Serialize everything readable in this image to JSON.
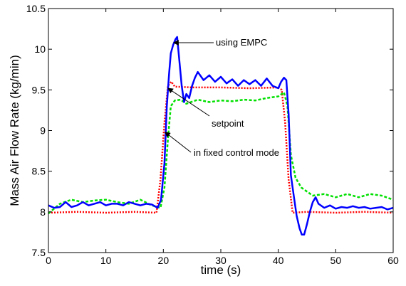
{
  "chart_data": {
    "type": "line",
    "title": "",
    "xlabel": "time (s)",
    "ylabel": "Mass Air Flow Rate (kg/min)",
    "xlim": [
      0,
      60
    ],
    "ylim": [
      7.5,
      10.5
    ],
    "xticks": [
      "0",
      "10",
      "20",
      "30",
      "40",
      "50",
      "60"
    ],
    "yticks": [
      "7.5",
      "8",
      "8.5",
      "9",
      "9.5",
      "10",
      "10.5"
    ],
    "grid": false,
    "legend": "none",
    "annotations": [
      {
        "text": "using EMPC",
        "point": [
          21.8,
          10.08
        ]
      },
      {
        "text": "setpoint",
        "point": [
          20.8,
          9.52
        ]
      },
      {
        "text": "in fixed control mode",
        "point": [
          20.3,
          8.98
        ]
      }
    ],
    "series": [
      {
        "key": "setpoint",
        "color": "#ff0000",
        "style": "dotted",
        "x": [
          0,
          5,
          10,
          15,
          18.8,
          19.5,
          20.2,
          20.8,
          21.4,
          22,
          25,
          30,
          35,
          40,
          40.6,
          41.2,
          41.8,
          42.5,
          45,
          50,
          55,
          60
        ],
        "y": [
          7.99,
          8.0,
          7.99,
          8.0,
          7.99,
          8.4,
          9.1,
          9.55,
          9.6,
          9.54,
          9.53,
          9.53,
          9.52,
          9.53,
          9.5,
          9.1,
          8.4,
          7.99,
          8.0,
          7.99,
          8.0,
          7.99
        ]
      },
      {
        "key": "fixed_control",
        "color": "#00e000",
        "style": "dashed",
        "x": [
          0,
          2,
          4,
          6,
          8,
          10,
          12,
          14,
          16,
          18,
          19.5,
          20.2,
          20.8,
          21.3,
          22,
          23,
          24,
          26,
          28,
          30,
          32,
          34,
          36,
          38,
          40,
          41,
          41.6,
          42.2,
          43,
          44,
          45,
          46,
          48,
          50,
          52,
          54,
          56,
          58,
          60
        ],
        "y": [
          7.98,
          8.1,
          8.15,
          8.12,
          8.14,
          8.15,
          8.12,
          8.1,
          8.15,
          8.08,
          8.05,
          8.3,
          8.9,
          9.3,
          9.37,
          9.38,
          9.33,
          9.38,
          9.35,
          9.37,
          9.36,
          9.38,
          9.37,
          9.4,
          9.42,
          9.47,
          9.3,
          8.7,
          8.42,
          8.3,
          8.25,
          8.2,
          8.22,
          8.18,
          8.22,
          8.18,
          8.22,
          8.2,
          8.15
        ]
      },
      {
        "key": "empc",
        "color": "#0000ff",
        "style": "solid",
        "x": [
          0,
          1,
          2,
          3,
          4,
          5,
          6,
          7,
          8,
          9,
          10,
          11,
          12,
          13,
          14,
          15,
          16,
          17,
          18,
          19,
          19.6,
          20.2,
          20.6,
          21,
          21.3,
          21.7,
          22.1,
          22.4,
          22.8,
          23.2,
          23.6,
          24,
          24.5,
          25,
          25.5,
          26,
          27,
          28,
          29,
          30,
          31,
          32,
          33,
          34,
          35,
          36,
          37,
          38,
          39,
          40,
          40.5,
          41,
          41.4,
          41.8,
          42.2,
          42.7,
          43.2,
          43.7,
          44.1,
          44.5,
          45,
          45.5,
          46,
          46.5,
          47,
          48,
          49,
          50,
          51,
          52,
          53,
          54,
          55,
          56,
          57,
          58,
          59,
          60
        ],
        "y": [
          8.08,
          8.05,
          8.06,
          8.12,
          8.06,
          8.08,
          8.12,
          8.08,
          8.1,
          8.12,
          8.08,
          8.1,
          8.1,
          8.08,
          8.12,
          8.1,
          8.08,
          8.1,
          8.09,
          8.05,
          8.15,
          8.6,
          9.3,
          9.7,
          9.95,
          10.05,
          10.12,
          10.15,
          9.85,
          9.55,
          9.35,
          9.45,
          9.4,
          9.55,
          9.65,
          9.72,
          9.62,
          9.68,
          9.6,
          9.66,
          9.58,
          9.63,
          9.55,
          9.62,
          9.57,
          9.62,
          9.55,
          9.64,
          9.55,
          9.52,
          9.6,
          9.65,
          9.62,
          9.2,
          8.45,
          8.2,
          7.95,
          7.8,
          7.72,
          7.72,
          7.85,
          8.0,
          8.12,
          8.18,
          8.1,
          8.05,
          8.08,
          8.04,
          8.06,
          8.05,
          8.07,
          8.05,
          8.06,
          8.04,
          8.05,
          8.06,
          8.03,
          8.05
        ]
      }
    ]
  }
}
